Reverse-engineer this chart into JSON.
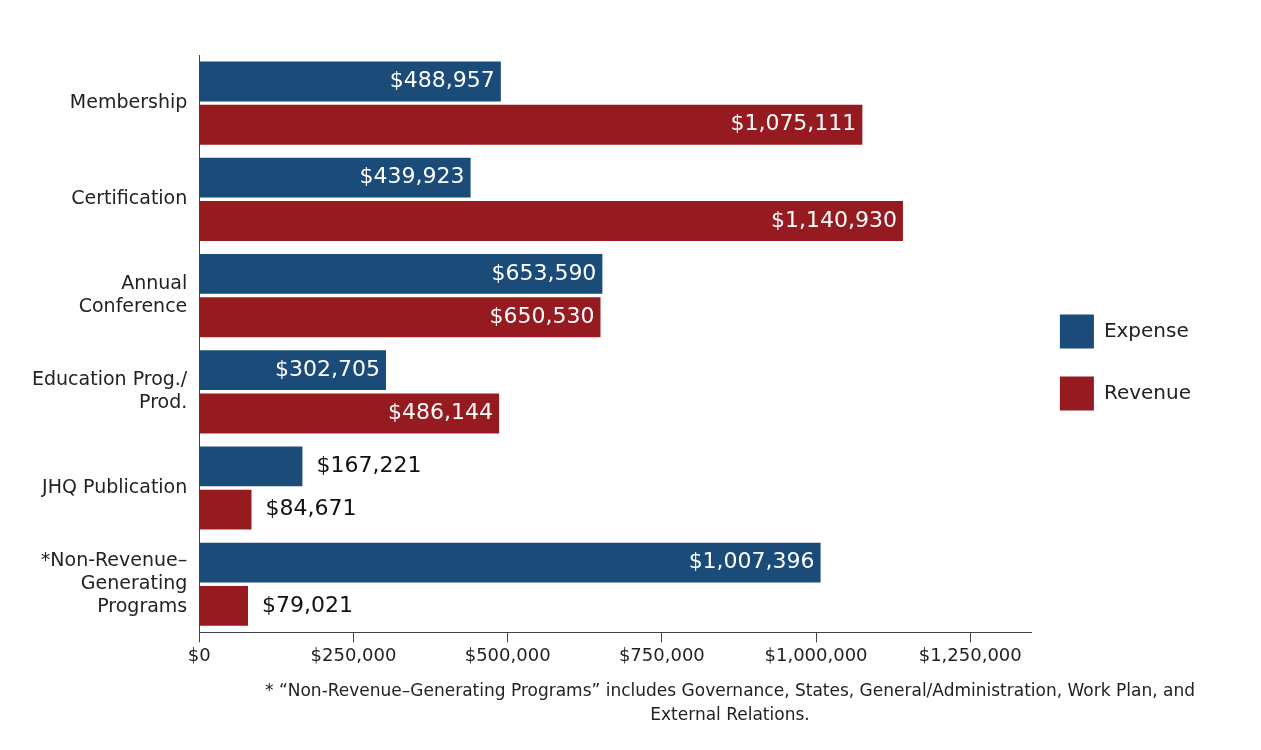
{
  "chart_data": {
    "type": "bar",
    "orientation": "horizontal",
    "categories": [
      "Membership",
      "Certification",
      "Annual Conference",
      "Education Prog./ Prod.",
      "JHQ Publication",
      "*Non-Revenue–Generating Programs"
    ],
    "series": [
      {
        "name": "Expense",
        "color": "#1b4b78",
        "values": [
          488957,
          439923,
          653590,
          302705,
          167221,
          1007396
        ]
      },
      {
        "name": "Revenue",
        "color": "#961b20",
        "values": [
          1075111,
          1140930,
          650530,
          486144,
          84671,
          79021
        ]
      }
    ],
    "xlim": [
      0,
      1350000
    ],
    "xticks": [
      {
        "value": 0,
        "label": "$0"
      },
      {
        "value": 250000,
        "label": "$250,000"
      },
      {
        "value": 500000,
        "label": "$500,000"
      },
      {
        "value": 750000,
        "label": "$750,000"
      },
      {
        "value": 1000000,
        "label": "$1,000,000"
      },
      {
        "value": 1250000,
        "label": "$1,250,000"
      }
    ],
    "value_labels": [
      [
        "$488,957",
        "$439,923",
        "$653,590",
        "$302,705",
        "$167,221",
        "$1,007,396"
      ],
      [
        "$1,075,111",
        "$1,140,930",
        "$650,530",
        "$486,144",
        "$84,671",
        "$79,021"
      ]
    ],
    "grid": false,
    "legend": "right",
    "annotations": [
      "* “Non-Revenue–Generating Programs” includes Governance, States, General/Administration, Work Plan, and External Relations."
    ]
  }
}
